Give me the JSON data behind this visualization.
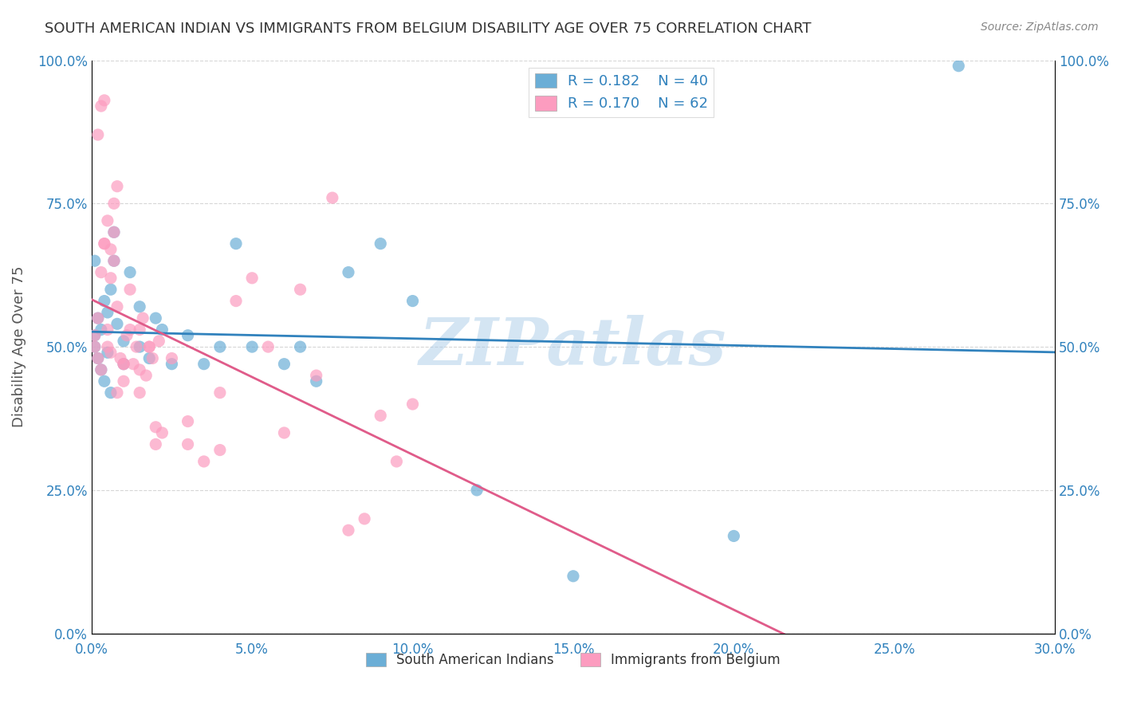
{
  "title": "SOUTH AMERICAN INDIAN VS IMMIGRANTS FROM BELGIUM DISABILITY AGE OVER 75 CORRELATION CHART",
  "source": "Source: ZipAtlas.com",
  "xlabel": "",
  "ylabel": "Disability Age Over 75",
  "xlim": [
    0.0,
    0.3
  ],
  "ylim": [
    0.0,
    1.0
  ],
  "xtick_labels": [
    "0.0%",
    "5.0%",
    "10.0%",
    "15.0%",
    "20.0%",
    "25.0%",
    "30.0%"
  ],
  "xtick_vals": [
    0.0,
    0.05,
    0.1,
    0.15,
    0.2,
    0.25,
    0.3
  ],
  "ytick_labels": [
    "0.0%",
    "25.0%",
    "50.0%",
    "75.0%",
    "100.0%"
  ],
  "ytick_vals": [
    0.0,
    0.25,
    0.5,
    0.75,
    1.0
  ],
  "blue_color": "#6baed6",
  "pink_color": "#fc9cbf",
  "blue_line_color": "#3182bd",
  "pink_line_color": "#e05c8a",
  "legend_R_blue": "0.182",
  "legend_N_blue": "40",
  "legend_R_pink": "0.170",
  "legend_N_pink": "62",
  "legend_text_color": "#3182bd",
  "watermark": "ZIPatlas",
  "watermark_color": "#aacce8",
  "blue_scatter_x": [
    0.001,
    0.001,
    0.002,
    0.002,
    0.003,
    0.003,
    0.004,
    0.004,
    0.005,
    0.005,
    0.006,
    0.006,
    0.007,
    0.007,
    0.008,
    0.01,
    0.01,
    0.012,
    0.015,
    0.015,
    0.018,
    0.02,
    0.022,
    0.025,
    0.03,
    0.035,
    0.04,
    0.045,
    0.05,
    0.06,
    0.065,
    0.07,
    0.08,
    0.09,
    0.1,
    0.12,
    0.15,
    0.2,
    0.27,
    0.001
  ],
  "blue_scatter_y": [
    0.5,
    0.52,
    0.55,
    0.48,
    0.53,
    0.46,
    0.58,
    0.44,
    0.56,
    0.49,
    0.6,
    0.42,
    0.65,
    0.7,
    0.54,
    0.51,
    0.47,
    0.63,
    0.57,
    0.5,
    0.48,
    0.55,
    0.53,
    0.47,
    0.52,
    0.47,
    0.5,
    0.68,
    0.5,
    0.47,
    0.5,
    0.44,
    0.63,
    0.68,
    0.58,
    0.25,
    0.1,
    0.17,
    0.99,
    0.65
  ],
  "pink_scatter_x": [
    0.001,
    0.001,
    0.002,
    0.002,
    0.003,
    0.003,
    0.004,
    0.004,
    0.005,
    0.005,
    0.006,
    0.006,
    0.007,
    0.007,
    0.008,
    0.008,
    0.009,
    0.01,
    0.01,
    0.012,
    0.012,
    0.014,
    0.015,
    0.015,
    0.016,
    0.018,
    0.02,
    0.02,
    0.022,
    0.025,
    0.03,
    0.03,
    0.035,
    0.04,
    0.04,
    0.045,
    0.05,
    0.055,
    0.06,
    0.065,
    0.07,
    0.075,
    0.08,
    0.085,
    0.09,
    0.095,
    0.1,
    0.01,
    0.011,
    0.013,
    0.015,
    0.017,
    0.019,
    0.021,
    0.002,
    0.003,
    0.004,
    0.005,
    0.006,
    0.007,
    0.008,
    0.018
  ],
  "pink_scatter_y": [
    0.5,
    0.52,
    0.55,
    0.48,
    0.63,
    0.46,
    0.68,
    0.68,
    0.53,
    0.5,
    0.49,
    0.62,
    0.65,
    0.7,
    0.42,
    0.57,
    0.48,
    0.44,
    0.47,
    0.6,
    0.53,
    0.5,
    0.46,
    0.42,
    0.55,
    0.5,
    0.36,
    0.33,
    0.35,
    0.48,
    0.37,
    0.33,
    0.3,
    0.32,
    0.42,
    0.58,
    0.62,
    0.5,
    0.35,
    0.6,
    0.45,
    0.76,
    0.18,
    0.2,
    0.38,
    0.3,
    0.4,
    0.47,
    0.52,
    0.47,
    0.53,
    0.45,
    0.48,
    0.51,
    0.87,
    0.92,
    0.93,
    0.72,
    0.67,
    0.75,
    0.78,
    0.5
  ]
}
